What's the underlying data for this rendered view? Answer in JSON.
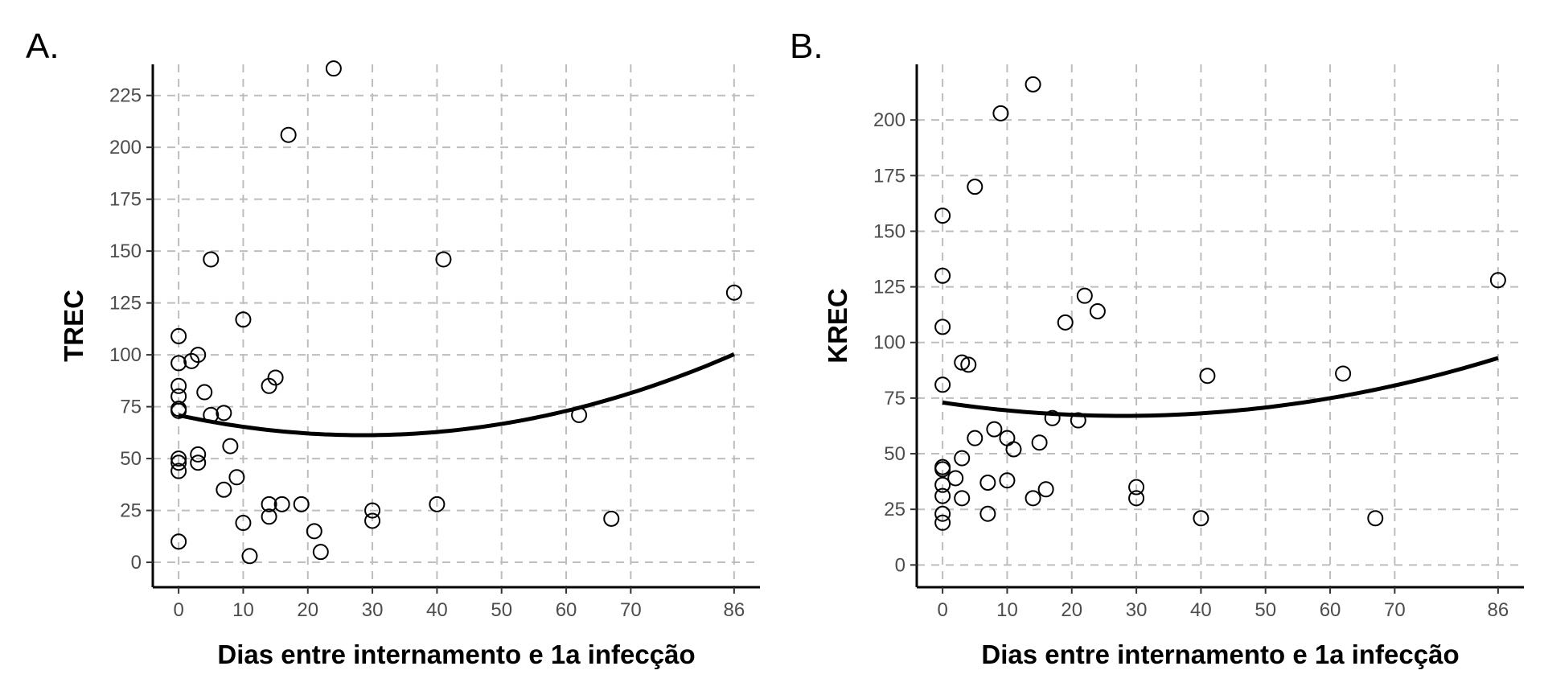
{
  "chart_data": [
    {
      "type": "scatter",
      "panel": "A.",
      "title": "",
      "xlabel": "Dias entre internamento e 1a infecção",
      "ylabel": "TREC",
      "xlim": [
        -4,
        90
      ],
      "ylim": [
        -12,
        240
      ],
      "x_ticks": [
        0,
        10,
        20,
        30,
        40,
        50,
        60,
        70,
        86
      ],
      "y_ticks": [
        0,
        25,
        50,
        75,
        100,
        125,
        150,
        175,
        200,
        225
      ],
      "grid": true,
      "points": [
        [
          0,
          109
        ],
        [
          0,
          96
        ],
        [
          0,
          85
        ],
        [
          0,
          80
        ],
        [
          0,
          74
        ],
        [
          0,
          73
        ],
        [
          0,
          50
        ],
        [
          0,
          48
        ],
        [
          0,
          44
        ],
        [
          0,
          10
        ],
        [
          2,
          97
        ],
        [
          3,
          100
        ],
        [
          3,
          52
        ],
        [
          3,
          48
        ],
        [
          4,
          82
        ],
        [
          5,
          146
        ],
        [
          5,
          71
        ],
        [
          7,
          72
        ],
        [
          7,
          35
        ],
        [
          8,
          56
        ],
        [
          9,
          41
        ],
        [
          10,
          117
        ],
        [
          10,
          19
        ],
        [
          11,
          3
        ],
        [
          14,
          85
        ],
        [
          14,
          28
        ],
        [
          14,
          22
        ],
        [
          15,
          89
        ],
        [
          16,
          28
        ],
        [
          17,
          206
        ],
        [
          19,
          28
        ],
        [
          21,
          15
        ],
        [
          22,
          5
        ],
        [
          24,
          238
        ],
        [
          30,
          25
        ],
        [
          30,
          20
        ],
        [
          40,
          28
        ],
        [
          41,
          146
        ],
        [
          62,
          71
        ],
        [
          67,
          21
        ],
        [
          86,
          130
        ]
      ],
      "fit_curve": {
        "type": "quadratic",
        "x": [
          0,
          10,
          20,
          30,
          40,
          50,
          60,
          70,
          80,
          86
        ],
        "y": [
          71,
          65,
          62,
          61.5,
          63,
          67,
          73,
          81,
          92,
          101
        ]
      }
    },
    {
      "type": "scatter",
      "panel": "B.",
      "title": "",
      "xlabel": "Dias entre internamento e 1a infecção",
      "ylabel": "KREC",
      "xlim": [
        -4,
        90
      ],
      "ylim": [
        -10,
        225
      ],
      "x_ticks": [
        0,
        10,
        20,
        30,
        40,
        50,
        60,
        70,
        86
      ],
      "y_ticks": [
        0,
        25,
        50,
        75,
        100,
        125,
        150,
        175,
        200
      ],
      "grid": true,
      "points": [
        [
          0,
          157
        ],
        [
          0,
          130
        ],
        [
          0,
          107
        ],
        [
          0,
          81
        ],
        [
          0,
          44
        ],
        [
          0,
          43
        ],
        [
          0,
          36
        ],
        [
          0,
          31
        ],
        [
          0,
          23
        ],
        [
          0,
          19
        ],
        [
          2,
          39
        ],
        [
          3,
          91
        ],
        [
          3,
          48
        ],
        [
          3,
          30
        ],
        [
          4,
          90
        ],
        [
          5,
          170
        ],
        [
          5,
          57
        ],
        [
          7,
          37
        ],
        [
          7,
          23
        ],
        [
          8,
          61
        ],
        [
          9,
          203
        ],
        [
          10,
          57
        ],
        [
          10,
          38
        ],
        [
          11,
          52
        ],
        [
          14,
          216
        ],
        [
          14,
          30
        ],
        [
          15,
          55
        ],
        [
          16,
          34
        ],
        [
          17,
          66
        ],
        [
          19,
          109
        ],
        [
          21,
          65
        ],
        [
          22,
          121
        ],
        [
          24,
          114
        ],
        [
          30,
          35
        ],
        [
          30,
          30
        ],
        [
          40,
          21
        ],
        [
          41,
          85
        ],
        [
          62,
          86
        ],
        [
          67,
          21
        ],
        [
          86,
          128
        ]
      ],
      "fit_curve": {
        "type": "quadratic",
        "x": [
          0,
          10,
          20,
          30,
          40,
          50,
          60,
          70,
          80,
          86
        ],
        "y": [
          73,
          69.5,
          67.5,
          67,
          68,
          71,
          75,
          80.5,
          88,
          93
        ]
      }
    }
  ]
}
